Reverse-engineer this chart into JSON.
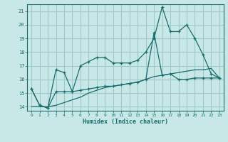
{
  "xlabel": "Humidex (Indice chaleur)",
  "x_values": [
    0,
    1,
    2,
    3,
    4,
    5,
    6,
    7,
    8,
    9,
    10,
    11,
    12,
    13,
    14,
    15,
    16,
    17,
    18,
    19,
    20,
    21,
    22,
    23
  ],
  "line1_y": [
    15.3,
    14.1,
    13.9,
    16.7,
    16.5,
    15.1,
    17.0,
    17.3,
    17.6,
    17.6,
    17.2,
    17.2,
    17.2,
    17.4,
    18.0,
    19.0,
    21.3,
    19.5,
    19.5,
    20.0,
    19.0,
    17.8,
    16.4,
    16.1
  ],
  "line2_y": [
    15.3,
    14.1,
    13.9,
    15.1,
    15.1,
    15.1,
    15.2,
    15.3,
    15.4,
    15.5,
    15.5,
    15.6,
    15.7,
    15.8,
    16.0,
    19.4,
    16.3,
    16.4,
    16.0,
    16.0,
    16.1,
    16.1,
    16.1,
    16.1
  ],
  "line3_y": [
    14.0,
    14.0,
    14.0,
    14.1,
    14.3,
    14.5,
    14.7,
    15.0,
    15.2,
    15.4,
    15.5,
    15.6,
    15.7,
    15.8,
    16.0,
    16.2,
    16.3,
    16.4,
    16.5,
    16.6,
    16.7,
    16.7,
    16.8,
    16.1
  ],
  "line_color": "#1a6b6b",
  "bg_color": "#c8e8e8",
  "grid_color": "#a0c8c8",
  "ylim": [
    13.7,
    21.5
  ],
  "yticks": [
    14,
    15,
    16,
    17,
    18,
    19,
    20,
    21
  ],
  "xlim": [
    -0.5,
    23.5
  ],
  "xticks": [
    0,
    1,
    2,
    3,
    4,
    5,
    6,
    7,
    8,
    9,
    10,
    11,
    12,
    13,
    14,
    15,
    16,
    17,
    18,
    19,
    20,
    21,
    22,
    23
  ]
}
